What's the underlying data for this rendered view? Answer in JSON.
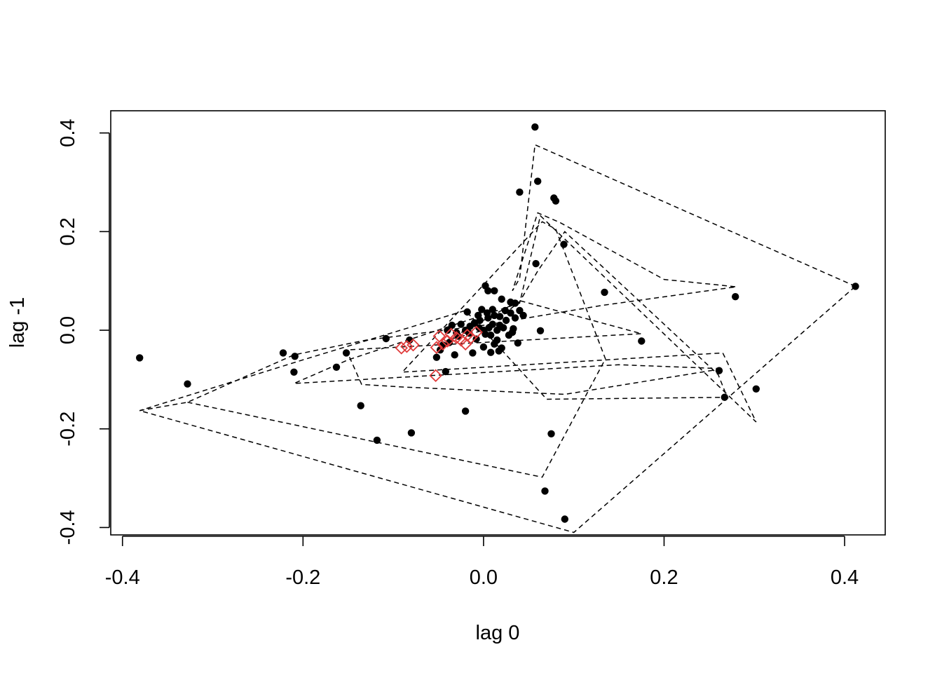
{
  "chart_data": {
    "type": "scatter",
    "xlabel": "lag 0",
    "ylabel": "lag -1",
    "xlim": [
      -0.413,
      0.445
    ],
    "ylim": [
      -0.415,
      0.445
    ],
    "x_ticks": [
      -0.4,
      -0.2,
      0.0,
      0.2,
      0.4
    ],
    "x_tick_labels": [
      "-0.4",
      "-0.2",
      "0.0",
      "0.2",
      "0.4"
    ],
    "y_ticks": [
      -0.4,
      -0.2,
      0.0,
      0.2,
      0.4
    ],
    "y_tick_labels": [
      "-0.4",
      "-0.2",
      "0.0",
      "0.2",
      "0.4"
    ],
    "grid": false,
    "colors": {
      "points": "#000000",
      "highlight": "#e03b3b",
      "path": "#000000"
    },
    "series": [
      {
        "marker": "filled-circle",
        "points": [
          [
            -0.381,
            -0.056
          ],
          [
            -0.328,
            -0.109
          ],
          [
            -0.222,
            -0.046
          ],
          [
            -0.21,
            -0.085
          ],
          [
            -0.209,
            -0.053
          ],
          [
            -0.163,
            -0.075
          ],
          [
            -0.152,
            -0.046
          ],
          [
            -0.136,
            -0.153
          ],
          [
            -0.118,
            -0.223
          ],
          [
            -0.108,
            -0.017
          ],
          [
            -0.082,
            -0.02
          ],
          [
            -0.08,
            -0.208
          ],
          [
            -0.042,
            -0.084
          ],
          [
            -0.032,
            -0.05
          ],
          [
            -0.02,
            -0.164
          ],
          [
            -0.018,
            0.037
          ],
          [
            -0.012,
            -0.046
          ],
          [
            0.002,
            0.09
          ],
          [
            0.005,
            0.08
          ],
          [
            0.012,
            0.08
          ],
          [
            0.02,
            0.063
          ],
          [
            0.03,
            0.057
          ],
          [
            0.035,
            0.055
          ],
          [
            0.04,
            0.28
          ],
          [
            0.057,
            0.412
          ],
          [
            0.06,
            0.302
          ],
          [
            0.058,
            0.135
          ],
          [
            0.063,
            -0.001
          ],
          [
            0.075,
            -0.21
          ],
          [
            0.078,
            0.268
          ],
          [
            0.08,
            0.262
          ],
          [
            0.068,
            -0.326
          ],
          [
            0.089,
            0.174
          ],
          [
            0.09,
            -0.383
          ],
          [
            0.134,
            0.077
          ],
          [
            0.175,
            -0.022
          ],
          [
            0.261,
            -0.082
          ],
          [
            0.267,
            -0.136
          ],
          [
            0.279,
            0.068
          ],
          [
            0.302,
            -0.119
          ],
          [
            0.412,
            0.089
          ],
          [
            0.038,
            -0.026
          ],
          [
            0.032,
            -0.004
          ],
          [
            0.02,
            -0.036
          ],
          [
            0.015,
            -0.02
          ],
          [
            0.008,
            -0.045
          ],
          [
            0.0,
            -0.034
          ],
          [
            -0.005,
            0.005
          ],
          [
            -0.01,
            0.015
          ],
          [
            0.005,
            0.025
          ],
          [
            0.012,
            0.03
          ],
          [
            0.018,
            0.01
          ],
          [
            0.025,
            0.02
          ],
          [
            0.03,
            0.035
          ],
          [
            0.04,
            0.04
          ],
          [
            0.035,
            0.025
          ],
          [
            0.022,
            0.005
          ],
          [
            0.015,
            0.0
          ],
          [
            0.008,
            -0.01
          ],
          [
            0.0,
            0.0
          ],
          [
            -0.004,
            0.02
          ],
          [
            0.004,
            0.035
          ],
          [
            0.01,
            0.012
          ],
          [
            -0.015,
            0.008
          ],
          [
            -0.025,
            0.012
          ],
          [
            -0.03,
            -0.005
          ],
          [
            -0.035,
            0.01
          ],
          [
            -0.045,
            -0.03
          ],
          [
            -0.048,
            -0.04
          ],
          [
            -0.038,
            -0.025
          ],
          [
            -0.028,
            -0.012
          ],
          [
            -0.02,
            0.0
          ],
          [
            -0.008,
            -0.018
          ],
          [
            0.002,
            -0.008
          ],
          [
            0.006,
            0.005
          ],
          [
            0.028,
            -0.01
          ],
          [
            0.033,
            0.003
          ],
          [
            0.018,
            0.028
          ],
          [
            -0.002,
            0.042
          ],
          [
            0.01,
            0.042
          ],
          [
            0.024,
            0.04
          ],
          [
            0.044,
            0.03
          ],
          [
            0.012,
            -0.028
          ],
          [
            -0.016,
            -0.006
          ],
          [
            -0.04,
            0.0
          ],
          [
            -0.052,
            -0.055
          ],
          [
            0.017,
            -0.042
          ],
          [
            -0.006,
            0.03
          ]
        ]
      },
      {
        "marker": "open-diamond",
        "points": [
          [
            -0.091,
            -0.036
          ],
          [
            -0.085,
            -0.033
          ],
          [
            -0.078,
            -0.03
          ],
          [
            -0.052,
            -0.035
          ],
          [
            -0.049,
            -0.012
          ],
          [
            -0.045,
            -0.028
          ],
          [
            -0.04,
            -0.022
          ],
          [
            -0.036,
            -0.008
          ],
          [
            -0.03,
            -0.015
          ],
          [
            -0.025,
            -0.02
          ],
          [
            -0.02,
            -0.028
          ],
          [
            -0.018,
            -0.01
          ],
          [
            -0.014,
            -0.015
          ],
          [
            -0.008,
            -0.004
          ],
          [
            -0.053,
            -0.092
          ]
        ]
      },
      {
        "style": "dashed-path",
        "points": [
          [
            0.412,
            0.089
          ],
          [
            0.057,
            0.376
          ],
          [
            0.04,
            0.105
          ],
          [
            0.032,
            0.08
          ],
          [
            0.06,
            0.238
          ],
          [
            0.085,
            0.218
          ],
          [
            0.2,
            0.103
          ],
          [
            0.28,
            0.088
          ],
          [
            0.13,
            0.05
          ],
          [
            0.0,
            0.01
          ],
          [
            -0.13,
            -0.02
          ],
          [
            -0.21,
            -0.05
          ],
          [
            -0.328,
            -0.146
          ],
          [
            -0.381,
            -0.163
          ],
          [
            0.1,
            -0.41
          ],
          [
            0.412,
            0.089
          ]
        ]
      },
      {
        "style": "dashed-path",
        "points": [
          [
            -0.328,
            -0.146
          ],
          [
            0.065,
            -0.298
          ],
          [
            0.135,
            -0.058
          ],
          [
            0.08,
            0.205
          ],
          [
            0.065,
            0.22
          ],
          [
            -0.09,
            -0.085
          ],
          [
            0.265,
            -0.046
          ],
          [
            0.302,
            -0.186
          ],
          [
            0.063,
            0.232
          ],
          [
            0.04,
            0.055
          ],
          [
            -0.15,
            -0.06
          ],
          [
            -0.21,
            -0.108
          ],
          [
            0.15,
            -0.07
          ],
          [
            0.265,
            -0.078
          ],
          [
            0.09,
            -0.13
          ],
          [
            -0.09,
            -0.115
          ],
          [
            -0.135,
            -0.11
          ],
          [
            -0.152,
            -0.04
          ],
          [
            0.175,
            -0.007
          ],
          [
            0.04,
            0.06
          ],
          [
            -0.04,
            -0.02
          ],
          [
            0.0,
            0.0
          ],
          [
            0.04,
            0.058
          ],
          [
            0.06,
            0.12
          ],
          [
            0.09,
            0.2
          ],
          [
            0.26,
            -0.09
          ],
          [
            0.27,
            -0.136
          ],
          [
            0.07,
            -0.14
          ],
          [
            0.02,
            -0.04
          ],
          [
            -0.02,
            0.04
          ],
          [
            -0.2,
            -0.06
          ],
          [
            -0.381,
            -0.163
          ]
        ]
      }
    ]
  }
}
